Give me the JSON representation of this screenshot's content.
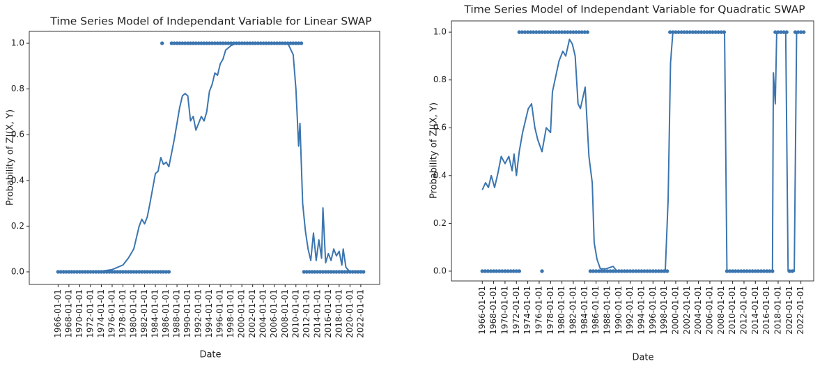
{
  "chart_data": [
    {
      "type": "line",
      "title": "Time Series Model of Independant Variable for Linear SWAP",
      "xlabel": "Date",
      "ylabel": "Probability of Z|(X, Y)",
      "xlim": [
        "1960-09-01",
        "2025-07-01"
      ],
      "ylim": [
        -0.055,
        1.052
      ],
      "xticks": [
        "1966-01-01",
        "1968-01-01",
        "1970-01-01",
        "1972-01-01",
        "1974-01-01",
        "1976-01-01",
        "1978-01-01",
        "1980-01-01",
        "1982-01-01",
        "1984-01-01",
        "1986-01-01",
        "1988-01-01",
        "1990-01-01",
        "1992-01-01",
        "1994-01-01",
        "1996-01-01",
        "1998-01-01",
        "2000-01-01",
        "2002-01-01",
        "2004-01-01",
        "2006-01-01",
        "2008-01-01",
        "2010-01-01",
        "2012-01-01",
        "2014-01-01",
        "2016-01-01",
        "2018-01-01",
        "2020-01-01",
        "2022-01-01"
      ],
      "yticks": [
        {
          "value": 0,
          "label": "0.0"
        },
        0.2,
        0.4,
        0.6,
        0.8,
        {
          "value": 1,
          "label": "1.0"
        }
      ],
      "series": [
        {
          "type": "line",
          "color": "#3b75af",
          "x": [
            "1966-01-01",
            "1970-01-01",
            "1974-01-01",
            "1976-01-01",
            "1978-01-01",
            "1979-01-01",
            "1980-01-01",
            "1981-01-01",
            "1981-07-01",
            "1982-01-01",
            "1982-07-01",
            "1983-01-01",
            "1984-01-01",
            "1984-07-01",
            "1985-01-01",
            "1985-07-01",
            "1986-01-01",
            "1986-07-01",
            "1987-01-01",
            "1987-07-01",
            "1988-01-01",
            "1988-07-01",
            "1989-01-01",
            "1989-07-01",
            "1990-01-01",
            "1990-07-01",
            "1991-01-01",
            "1991-07-01",
            "1992-01-01",
            "1992-07-01",
            "1993-01-01",
            "1993-07-01",
            "1994-01-01",
            "1994-07-01",
            "1995-01-01",
            "1995-07-01",
            "1996-01-01",
            "1996-07-01",
            "1997-01-01",
            "1998-01-01",
            "1999-01-01",
            "2008-07-01",
            "2009-07-01",
            "2010-01-01",
            "2010-07-01",
            "2010-10-01",
            "2011-04-01",
            "2011-10-01",
            "2012-04-01",
            "2012-10-01",
            "2013-04-01",
            "2013-10-01",
            "2014-04-01",
            "2014-10-01",
            "2015-01-01",
            "2015-07-01",
            "2016-01-01",
            "2016-07-01",
            "2017-01-01",
            "2017-07-01",
            "2018-01-01",
            "2018-07-01",
            "2018-10-01",
            "2019-04-01",
            "2020-01-01",
            "2022-07-01"
          ],
          "values": [
            0,
            0,
            0.003,
            0.01,
            0.03,
            0.06,
            0.1,
            0.2,
            0.23,
            0.21,
            0.24,
            0.3,
            0.43,
            0.44,
            0.5,
            0.47,
            0.48,
            0.46,
            0.52,
            0.58,
            0.65,
            0.72,
            0.77,
            0.78,
            0.77,
            0.66,
            0.68,
            0.62,
            0.65,
            0.68,
            0.66,
            0.7,
            0.79,
            0.82,
            0.87,
            0.86,
            0.91,
            0.93,
            0.97,
            0.99,
            1,
            1,
            0.95,
            0.8,
            0.55,
            0.65,
            0.3,
            0.18,
            0.1,
            0.05,
            0.17,
            0.05,
            0.14,
            0.06,
            0.28,
            0.04,
            0.08,
            0.05,
            0.1,
            0.07,
            0.09,
            0.03,
            0.1,
            0.02,
            0,
            0
          ]
        },
        {
          "type": "scatter",
          "color": "#3b75af",
          "x": [
            "1966-01-01",
            "1966-07-01",
            "1967-01-01",
            "1967-07-01",
            "1968-01-01",
            "1968-07-01",
            "1969-01-01",
            "1969-07-01",
            "1970-01-01",
            "1970-07-01",
            "1971-01-01",
            "1971-07-01",
            "1972-01-01",
            "1972-07-01",
            "1973-01-01",
            "1973-07-01",
            "1974-01-01",
            "1974-07-01",
            "1975-01-01",
            "1975-07-01",
            "1976-01-01",
            "1976-07-01",
            "1977-01-01",
            "1977-07-01",
            "1978-01-01",
            "1978-07-01",
            "1979-01-01",
            "1979-07-01",
            "1980-01-01",
            "1980-07-01",
            "1981-01-01",
            "1981-07-01",
            "1982-01-01",
            "1982-07-01",
            "1983-01-01",
            "1983-07-01",
            "1984-01-01",
            "1984-07-01",
            "1985-01-01",
            "1985-07-01",
            "1986-01-01",
            "1986-07-01",
            "1987-01-01",
            "1987-07-01",
            "1988-01-01",
            "1988-07-01",
            "1989-01-01",
            "1989-07-01",
            "1990-01-01",
            "1990-07-01",
            "1991-01-01",
            "1991-07-01",
            "1992-01-01",
            "1992-07-01",
            "1993-01-01",
            "1993-07-01",
            "1994-01-01",
            "1994-07-01",
            "1995-01-01",
            "1995-07-01",
            "1996-01-01",
            "1996-07-01",
            "1997-01-01",
            "1997-07-01",
            "1998-01-01",
            "1998-07-01",
            "1999-01-01",
            "1999-07-01",
            "2000-01-01",
            "2000-07-01",
            "2001-01-01",
            "2001-07-01",
            "2002-01-01",
            "2002-07-01",
            "2003-01-01",
            "2003-07-01",
            "2004-01-01",
            "2004-07-01",
            "2005-01-01",
            "2005-07-01",
            "2006-01-01",
            "2006-07-01",
            "2007-01-01",
            "2007-07-01",
            "2008-01-01",
            "2008-07-01",
            "2009-01-01",
            "2009-07-01",
            "2010-01-01",
            "2010-07-01",
            "2011-01-01",
            "2011-07-01",
            "2012-01-01",
            "2012-07-01",
            "2013-01-01",
            "2013-07-01",
            "2014-01-01",
            "2014-07-01",
            "2015-01-01",
            "2015-07-01",
            "2016-01-01",
            "2016-07-01",
            "2017-01-01",
            "2017-07-01",
            "2018-01-01",
            "2018-07-01",
            "2019-01-01",
            "2019-07-01",
            "2020-01-01",
            "2020-07-01",
            "2021-01-01",
            "2021-07-01",
            "2022-01-01",
            "2022-07-01",
            "1985-04-01"
          ],
          "values": [
            0,
            0,
            0,
            0,
            0,
            0,
            0,
            0,
            0,
            0,
            0,
            0,
            0,
            0,
            0,
            0,
            0,
            0,
            0,
            0,
            0,
            0,
            0,
            0,
            0,
            0,
            0,
            0,
            0,
            0,
            0,
            0,
            0,
            0,
            0,
            0,
            0,
            0,
            0,
            0,
            0,
            0,
            1,
            1,
            1,
            1,
            1,
            1,
            1,
            1,
            1,
            1,
            1,
            1,
            1,
            1,
            1,
            1,
            1,
            1,
            1,
            1,
            1,
            1,
            1,
            1,
            1,
            1,
            1,
            1,
            1,
            1,
            1,
            1,
            1,
            1,
            1,
            1,
            1,
            1,
            1,
            1,
            1,
            1,
            1,
            1,
            1,
            1,
            1,
            1,
            1,
            0,
            0,
            0,
            0,
            0,
            0,
            0,
            0,
            0,
            0,
            0,
            0,
            0,
            0,
            0,
            0,
            0,
            0,
            0,
            0,
            0,
            0,
            0,
            1
          ]
        }
      ]
    },
    {
      "type": "line",
      "title": "Time Series Model of Independant Variable for Quadratic SWAP",
      "xlabel": "Date",
      "ylabel": "Probability of Z|(X, Y)",
      "xlim": [
        "1960-08-01",
        "2024-04-01"
      ],
      "ylim": [
        -0.041,
        1.047
      ],
      "xticks": [
        "1966-01-01",
        "1968-01-01",
        "1970-01-01",
        "1972-01-01",
        "1974-01-01",
        "1976-01-01",
        "1978-01-01",
        "1980-01-01",
        "1982-01-01",
        "1984-01-01",
        "1986-01-01",
        "1988-01-01",
        "1990-01-01",
        "1992-01-01",
        "1994-01-01",
        "1996-01-01",
        "1998-01-01",
        "2000-01-01",
        "2002-01-01",
        "2004-01-01",
        "2006-01-01",
        "2008-01-01",
        "2010-01-01",
        "2012-01-01",
        "2014-01-01",
        "2016-01-01",
        "2018-01-01",
        "2020-01-01",
        "2022-01-01"
      ],
      "yticks": [
        {
          "value": 0,
          "label": "0.0"
        },
        0.2,
        0.4,
        0.6,
        0.8,
        {
          "value": 1,
          "label": "1.0"
        }
      ],
      "series": [
        {
          "type": "line",
          "color": "#3b75af",
          "x": [
            "1966-01-01",
            "1966-08-01",
            "1967-02-01",
            "1967-08-01",
            "1968-03-01",
            "1968-10-01",
            "1969-05-01",
            "1970-01-01",
            "1970-09-01",
            "1971-04-01",
            "1971-08-01",
            "1972-01-01",
            "1972-07-01",
            "1973-02-01",
            "1974-02-01",
            "1974-09-01",
            "1975-04-01",
            "1975-10-01",
            "1976-07-01",
            "1977-04-01",
            "1978-01-01",
            "1978-05-01",
            "1979-07-01",
            "1980-03-01",
            "1980-09-01",
            "1981-05-01",
            "1981-11-01",
            "1982-05-01",
            "1982-11-01",
            "1983-04-01",
            "1984-02-01",
            "1984-10-01",
            "1985-05-01",
            "1985-09-01",
            "1986-03-01",
            "1986-10-01",
            "1987-10-01",
            "1989-01-01",
            "1989-09-01",
            "1998-03-01",
            "1998-09-01",
            "1999-02-01",
            "1999-07-01",
            "2008-08-01",
            "2009-01-01",
            "2017-01-01",
            "2017-03-01",
            "2017-07-01",
            "2017-10-01",
            "2019-05-01",
            "2019-10-01",
            "2020-11-01",
            "2021-04-01",
            "2022-09-01"
          ],
          "values": [
            0.34,
            0.37,
            0.35,
            0.4,
            0.35,
            0.41,
            0.48,
            0.45,
            0.48,
            0.42,
            0.49,
            0.4,
            0.5,
            0.58,
            0.68,
            0.7,
            0.6,
            0.55,
            0.5,
            0.6,
            0.58,
            0.75,
            0.88,
            0.92,
            0.9,
            0.97,
            0.95,
            0.9,
            0.7,
            0.68,
            0.77,
            0.48,
            0.37,
            0.12,
            0.05,
            0.01,
            0.01,
            0.02,
            0,
            0,
            0.3,
            0.87,
            1,
            1,
            0,
            0,
            0.83,
            0.7,
            1,
            1,
            0,
            0,
            1,
            1
          ]
        },
        {
          "type": "scatter",
          "color": "#3b75af",
          "x": [
            "1966-01-01",
            "1966-07-01",
            "1967-01-01",
            "1967-07-01",
            "1968-01-01",
            "1968-07-01",
            "1969-01-01",
            "1969-07-01",
            "1970-01-01",
            "1970-07-01",
            "1971-01-01",
            "1971-07-01",
            "1972-01-01",
            "1972-07-01",
            "1973-01-01",
            "1973-07-01",
            "1974-01-01",
            "1974-07-01",
            "1975-01-01",
            "1975-07-01",
            "1976-01-01",
            "1976-07-01",
            "1977-01-01",
            "1977-07-01",
            "1978-01-01",
            "1978-07-01",
            "1979-01-01",
            "1979-07-01",
            "1980-01-01",
            "1980-07-01",
            "1981-01-01",
            "1981-07-01",
            "1982-01-01",
            "1982-07-01",
            "1983-01-01",
            "1983-07-01",
            "1984-01-01",
            "1984-07-01",
            "1985-01-01",
            "1985-07-01",
            "1986-01-01",
            "1986-07-01",
            "1987-01-01",
            "1987-07-01",
            "1988-01-01",
            "1988-07-01",
            "1989-01-01",
            "1989-07-01",
            "1990-01-01",
            "1990-07-01",
            "1991-01-01",
            "1991-07-01",
            "1992-01-01",
            "1992-07-01",
            "1993-01-01",
            "1993-07-01",
            "1994-01-01",
            "1994-07-01",
            "1995-01-01",
            "1995-07-01",
            "1996-01-01",
            "1996-07-01",
            "1997-01-01",
            "1997-07-01",
            "1998-01-01",
            "1998-07-01",
            "1999-01-01",
            "1999-07-01",
            "2000-01-01",
            "2000-07-01",
            "2001-01-01",
            "2001-07-01",
            "2002-01-01",
            "2002-07-01",
            "2003-01-01",
            "2003-07-01",
            "2004-01-01",
            "2004-07-01",
            "2005-01-01",
            "2005-07-01",
            "2006-01-01",
            "2006-07-01",
            "2007-01-01",
            "2007-07-01",
            "2008-01-01",
            "2008-07-01",
            "2009-01-01",
            "2009-07-01",
            "2010-01-01",
            "2010-07-01",
            "2011-01-01",
            "2011-07-01",
            "2012-01-01",
            "2012-07-01",
            "2013-01-01",
            "2013-07-01",
            "2014-01-01",
            "2014-07-01",
            "2015-01-01",
            "2015-07-01",
            "2016-01-01",
            "2016-07-01",
            "2017-01-01",
            "2017-07-01",
            "2018-01-01",
            "2018-07-01",
            "2019-01-01",
            "2019-07-01",
            "2020-01-01",
            "2020-07-01",
            "2021-01-01",
            "2021-07-01",
            "2022-01-01",
            "2022-07-01",
            "1972-07-01",
            "1976-07-01"
          ],
          "values": [
            0,
            0,
            0,
            0,
            0,
            0,
            0,
            0,
            0,
            0,
            0,
            0,
            0,
            1,
            1,
            1,
            1,
            1,
            1,
            1,
            1,
            1,
            1,
            1,
            1,
            1,
            1,
            1,
            1,
            1,
            1,
            1,
            1,
            1,
            1,
            1,
            1,
            1,
            0,
            0,
            0,
            0,
            0,
            0,
            0,
            0,
            0,
            0,
            0,
            0,
            0,
            0,
            0,
            0,
            0,
            0,
            0,
            0,
            0,
            0,
            0,
            0,
            0,
            0,
            0,
            0,
            1,
            1,
            1,
            1,
            1,
            1,
            1,
            1,
            1,
            1,
            1,
            1,
            1,
            1,
            1,
            1,
            1,
            1,
            1,
            1,
            0,
            0,
            0,
            0,
            0,
            0,
            0,
            0,
            0,
            0,
            0,
            0,
            0,
            0,
            0,
            0,
            0,
            1,
            1,
            1,
            1,
            1,
            0,
            0,
            1,
            1,
            1,
            1,
            0,
            0
          ]
        }
      ]
    }
  ]
}
